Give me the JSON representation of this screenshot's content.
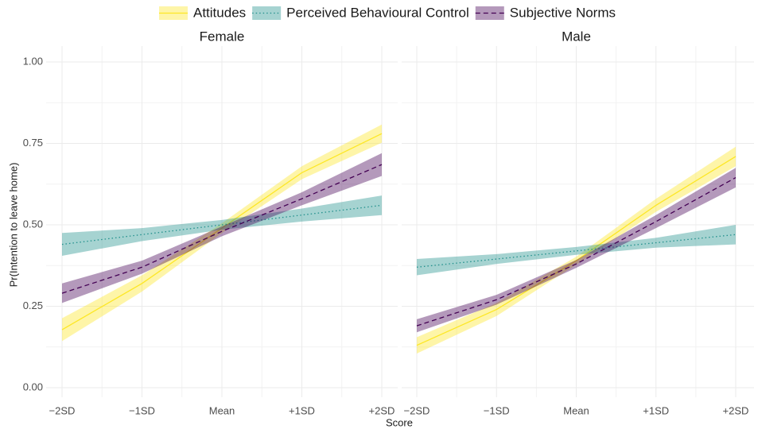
{
  "chart_data": [
    {
      "type": "line",
      "title": "Female",
      "x_label": "Score",
      "y_label": "Pr(Intention to leave home)",
      "categories": [
        "−2SD",
        "−1SD",
        "Mean",
        "+1SD",
        "+2SD"
      ],
      "ylim": [
        0,
        1
      ],
      "yticks": [
        {
          "value": 0,
          "label": "0.00"
        },
        {
          "value": 0.25,
          "label": "0.25"
        },
        {
          "value": 0.5,
          "label": "0.50"
        },
        {
          "value": 0.75,
          "label": "0.75"
        },
        {
          "value": 1,
          "label": "1.00"
        }
      ],
      "grid": true,
      "series": [
        {
          "name": "Attitudes",
          "color": "#fde725",
          "linestyle": "solid",
          "values": [
            0.178,
            0.32,
            0.49,
            0.66,
            0.78
          ],
          "lower": [
            0.143,
            0.295,
            0.475,
            0.64,
            0.752
          ],
          "upper": [
            0.213,
            0.345,
            0.505,
            0.68,
            0.808
          ]
        },
        {
          "name": "Perceived Behavioural Control",
          "color": "#21908c",
          "linestyle": "dotted",
          "values": [
            0.44,
            0.47,
            0.5,
            0.53,
            0.56
          ],
          "lower": [
            0.405,
            0.45,
            0.485,
            0.51,
            0.53
          ],
          "upper": [
            0.475,
            0.49,
            0.515,
            0.55,
            0.59
          ]
        },
        {
          "name": "Subjective Norms",
          "color": "#440154",
          "linestyle": "dashed",
          "values": [
            0.29,
            0.37,
            0.48,
            0.58,
            0.685
          ],
          "lower": [
            0.26,
            0.35,
            0.465,
            0.56,
            0.65
          ],
          "upper": [
            0.32,
            0.39,
            0.495,
            0.6,
            0.72
          ]
        }
      ]
    },
    {
      "type": "line",
      "title": "Male",
      "categories": [
        "−2SD",
        "−1SD",
        "Mean",
        "+1SD",
        "+2SD"
      ],
      "ylim": [
        0,
        1
      ],
      "yticks": [
        0,
        0.25,
        0.5,
        0.75,
        1
      ],
      "grid": true,
      "series": [
        {
          "name": "Attitudes",
          "color": "#fde725",
          "linestyle": "solid",
          "values": [
            0.13,
            0.24,
            0.39,
            0.56,
            0.71
          ],
          "lower": [
            0.105,
            0.22,
            0.378,
            0.54,
            0.68
          ],
          "upper": [
            0.155,
            0.26,
            0.402,
            0.58,
            0.74
          ]
        },
        {
          "name": "Perceived Behavioural Control",
          "color": "#21908c",
          "linestyle": "dotted",
          "values": [
            0.37,
            0.395,
            0.42,
            0.445,
            0.47
          ],
          "lower": [
            0.345,
            0.38,
            0.408,
            0.43,
            0.44
          ],
          "upper": [
            0.395,
            0.41,
            0.432,
            0.46,
            0.5
          ]
        },
        {
          "name": "Subjective Norms",
          "color": "#440154",
          "linestyle": "dashed",
          "values": [
            0.19,
            0.27,
            0.38,
            0.51,
            0.645
          ],
          "lower": [
            0.17,
            0.255,
            0.368,
            0.49,
            0.615
          ],
          "upper": [
            0.21,
            0.285,
            0.392,
            0.53,
            0.675
          ]
        }
      ]
    }
  ]
}
